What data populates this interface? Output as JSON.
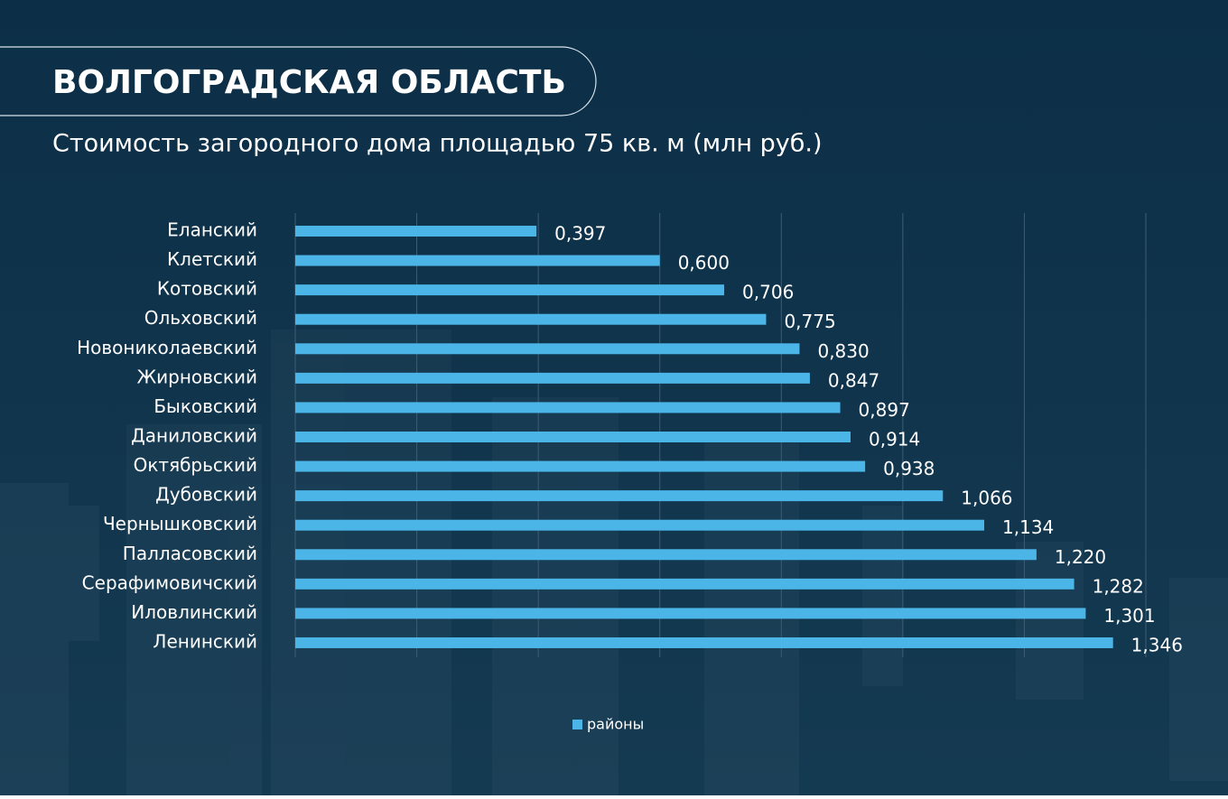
{
  "chart_data": {
    "type": "bar",
    "orientation": "horizontal",
    "title": "ВОЛГОГРАДСКАЯ ОБЛАСТЬ",
    "subtitle": "Стоимость загородного дома площадью 75 кв. м (млн руб.)",
    "categories": [
      "Еланский",
      "Клетский",
      "Котовский",
      "Ольховский",
      "Новониколаевский",
      "Жирновский",
      "Быковский",
      "Даниловский",
      "Октябрьский",
      "Дубовский",
      "Чернышковский",
      "Палласовский",
      "Серафимовичский",
      "Иловлинский",
      "Ленинский"
    ],
    "series": [
      {
        "name": "районы",
        "color": "#4ab5e6",
        "values": [
          0.397,
          0.6,
          0.706,
          0.775,
          0.83,
          0.847,
          0.897,
          0.914,
          0.938,
          1.066,
          1.134,
          1.22,
          1.282,
          1.301,
          1.346
        ],
        "value_labels": [
          "0,397",
          "0,600",
          "0,706",
          "0,775",
          "0,830",
          "0,847",
          "0,897",
          "0,914",
          "0,938",
          "1,066",
          "1,134",
          "1,220",
          "1,282",
          "1,301",
          "1,346"
        ]
      }
    ],
    "xlim": [
      0,
      1.4
    ],
    "xticks": [
      0,
      0.2,
      0.4,
      0.6,
      0.8,
      1.0,
      1.2,
      1.4
    ],
    "grid": true,
    "legend": "bottom"
  }
}
